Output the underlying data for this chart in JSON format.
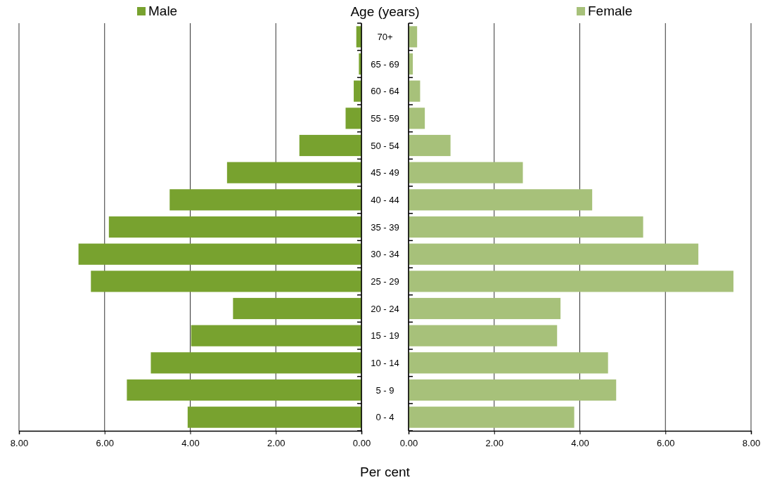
{
  "chart_data": [
    {
      "type": "bar",
      "orientation": "horizontal",
      "ylabel": "Age (years)",
      "xlabel": "Per cent",
      "categories": [
        "70+",
        "65 - 69",
        "60 - 64",
        "55 - 59",
        "50 - 54",
        "45 - 49",
        "40 - 44",
        "35 - 39",
        "30 - 34",
        "25 - 29",
        "20 - 24",
        "15 - 19",
        "10 - 14",
        "5 - 9",
        "0 - 4"
      ],
      "series": [
        {
          "name": "Male",
          "color": "#78a22f",
          "values": [
            0.12,
            0.06,
            0.18,
            0.37,
            1.45,
            3.14,
            4.48,
            5.9,
            6.61,
            6.32,
            3.0,
            3.98,
            4.92,
            5.48,
            4.06
          ]
        }
      ],
      "xlim": [
        8,
        0
      ],
      "xticks": [
        {
          "value": 8,
          "label": "8.00"
        },
        {
          "value": 6,
          "label": "6.00"
        },
        {
          "value": 4,
          "label": "4.00"
        },
        {
          "value": 2,
          "label": "2.00"
        },
        {
          "value": 0,
          "label": "0.00"
        }
      ],
      "grid": "x",
      "legend": "top left"
    },
    {
      "type": "bar",
      "orientation": "horizontal",
      "categories": [
        "70+",
        "65 - 69",
        "60 - 64",
        "55 - 59",
        "50 - 54",
        "45 - 49",
        "40 - 44",
        "35 - 39",
        "30 - 34",
        "25 - 29",
        "20 - 24",
        "15 - 19",
        "10 - 14",
        "5 - 9",
        "0 - 4"
      ],
      "series": [
        {
          "name": "Female",
          "color": "#a7c17a",
          "values": [
            0.2,
            0.1,
            0.27,
            0.38,
            0.98,
            2.67,
            4.29,
            5.48,
            6.77,
            7.59,
            3.55,
            3.47,
            4.66,
            4.85,
            3.87
          ]
        }
      ],
      "xlim": [
        0,
        8
      ],
      "xticks": [
        {
          "value": 0,
          "label": "0.00"
        },
        {
          "value": 2,
          "label": "2.00"
        },
        {
          "value": 4,
          "label": "4.00"
        },
        {
          "value": 6,
          "label": "6.00"
        },
        {
          "value": 8,
          "label": "8.00"
        }
      ],
      "grid": "x",
      "legend": "top right",
      "tick_labels": "x"
    }
  ]
}
